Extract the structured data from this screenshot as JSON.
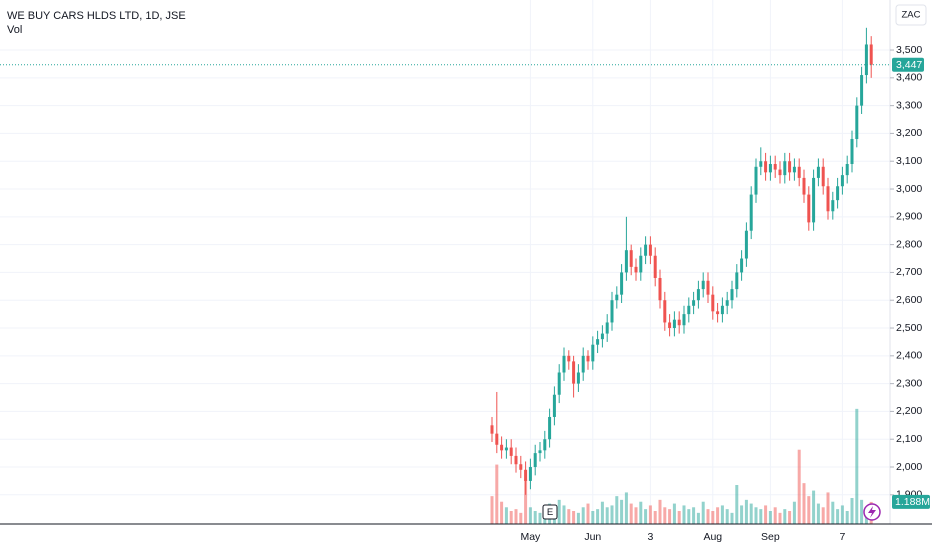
{
  "chart_data": {
    "type": "candlestick",
    "title": "WE BUY CARS HLDS LTD, 1D, JSE",
    "volume_title": "Vol",
    "currency": "ZAC",
    "earnings_marker": "E",
    "up_color": "#26a69a",
    "down_color": "#ef5350",
    "grid": true,
    "categories": [
      null,
      null,
      null,
      null,
      null,
      null,
      null,
      null,
      "May",
      null,
      null,
      null,
      null,
      null,
      null,
      null,
      null,
      null,
      null,
      null,
      null,
      "Jun",
      null,
      null,
      null,
      null,
      null,
      null,
      null,
      null,
      null,
      null,
      null,
      "3",
      null,
      null,
      null,
      null,
      null,
      null,
      null,
      null,
      null,
      null,
      null,
      null,
      "Aug",
      null,
      null,
      null,
      null,
      null,
      null,
      null,
      null,
      null,
      null,
      null,
      "Sep",
      null,
      null,
      null,
      null,
      null,
      null,
      null,
      null,
      null,
      null,
      null,
      null,
      null,
      null,
      "7",
      null,
      null,
      null,
      null,
      null,
      null
    ],
    "open": [
      2150,
      2120,
      2080,
      2060,
      2070,
      2040,
      2010,
      1990,
      1950,
      2000,
      2050,
      2060,
      2100,
      2180,
      2260,
      2340,
      2400,
      2380,
      2300,
      2340,
      2400,
      2380,
      2440,
      2460,
      2480,
      2520,
      2600,
      2620,
      2700,
      2780,
      2720,
      2700,
      2760,
      2800,
      2760,
      2680,
      2600,
      2520,
      2500,
      2530,
      2510,
      2550,
      2580,
      2600,
      2640,
      2670,
      2620,
      2560,
      2550,
      2580,
      2600,
      2640,
      2700,
      2750,
      2850,
      2980,
      3080,
      3100,
      3060,
      3090,
      3070,
      3050,
      3100,
      3060,
      3080,
      3040,
      2980,
      2880,
      3040,
      3080,
      3010,
      2920,
      2960,
      3010,
      3050,
      3090,
      3180,
      3300,
      3410,
      3520
    ],
    "high": [
      2180,
      2270,
      2110,
      2100,
      2100,
      2070,
      2040,
      2020,
      2030,
      2080,
      2090,
      2130,
      2210,
      2290,
      2370,
      2430,
      2420,
      2400,
      2370,
      2430,
      2420,
      2470,
      2490,
      2510,
      2550,
      2630,
      2650,
      2730,
      2900,
      2800,
      2750,
      2790,
      2830,
      2830,
      2790,
      2710,
      2630,
      2550,
      2560,
      2560,
      2580,
      2610,
      2630,
      2670,
      2700,
      2700,
      2650,
      2590,
      2610,
      2630,
      2670,
      2730,
      2780,
      2880,
      3010,
      3110,
      3150,
      3130,
      3120,
      3120,
      3100,
      3130,
      3130,
      3110,
      3110,
      3070,
      3010,
      3070,
      3110,
      3110,
      3040,
      2990,
      3040,
      3080,
      3120,
      3210,
      3330,
      3440,
      3580,
      3550
    ],
    "low": [
      2090,
      2050,
      2030,
      2030,
      2010,
      1980,
      1960,
      1900,
      1920,
      1970,
      2020,
      2030,
      2070,
      2150,
      2230,
      2310,
      2350,
      2250,
      2270,
      2310,
      2350,
      2350,
      2410,
      2430,
      2450,
      2490,
      2570,
      2590,
      2670,
      2690,
      2670,
      2670,
      2730,
      2730,
      2650,
      2570,
      2490,
      2470,
      2470,
      2480,
      2480,
      2520,
      2550,
      2570,
      2610,
      2590,
      2530,
      2520,
      2520,
      2550,
      2570,
      2610,
      2670,
      2720,
      2820,
      2950,
      3050,
      3030,
      3030,
      3040,
      3020,
      3020,
      3030,
      3030,
      3010,
      2950,
      2850,
      2850,
      3010,
      2980,
      2890,
      2890,
      2930,
      2980,
      3020,
      3060,
      3150,
      3270,
      3380,
      3400
    ],
    "close": [
      2120,
      2080,
      2060,
      2070,
      2040,
      2010,
      1990,
      1950,
      2000,
      2050,
      2060,
      2100,
      2180,
      2260,
      2340,
      2400,
      2380,
      2300,
      2340,
      2400,
      2380,
      2440,
      2460,
      2480,
      2520,
      2600,
      2620,
      2700,
      2780,
      2720,
      2700,
      2760,
      2800,
      2760,
      2680,
      2600,
      2520,
      2500,
      2530,
      2510,
      2550,
      2580,
      2600,
      2640,
      2670,
      2620,
      2560,
      2550,
      2580,
      2600,
      2640,
      2700,
      2750,
      2850,
      2980,
      3080,
      3100,
      3060,
      3090,
      3070,
      3050,
      3100,
      3060,
      3080,
      3040,
      2980,
      2880,
      3040,
      3080,
      3010,
      2920,
      2960,
      3010,
      3050,
      3090,
      3180,
      3300,
      3410,
      3520,
      3447
    ],
    "volume": [
      1500000,
      3200000,
      1200000,
      900000,
      700000,
      800000,
      600000,
      2400000,
      900000,
      700000,
      600000,
      800000,
      1100000,
      900000,
      1300000,
      1000000,
      800000,
      700000,
      600000,
      900000,
      1100000,
      700000,
      800000,
      1200000,
      900000,
      1000000,
      1500000,
      1300000,
      1700000,
      1100000,
      900000,
      1200000,
      800000,
      1000000,
      700000,
      1300000,
      900000,
      800000,
      1100000,
      700000,
      1000000,
      800000,
      900000,
      600000,
      1200000,
      800000,
      700000,
      900000,
      1000000,
      800000,
      600000,
      2100000,
      1000000,
      1300000,
      1100000,
      900000,
      800000,
      1000000,
      700000,
      900000,
      600000,
      800000,
      700000,
      1200000,
      4000000,
      2200000,
      1500000,
      1800000,
      1100000,
      900000,
      1700000,
      1200000,
      800000,
      1000000,
      700000,
      1400000,
      6200000,
      1300000,
      900000,
      1188000
    ],
    "last_price_label": {
      "value": 3447,
      "label": "3,447"
    },
    "last_volume_label": {
      "value": 1188000,
      "label": "1.188M"
    },
    "ylim": [
      1795,
      3680
    ],
    "yticks": [
      {
        "value": 1900,
        "label": "1,900"
      },
      {
        "value": 2000,
        "label": "2,000"
      },
      {
        "value": 2100,
        "label": "2,100"
      },
      {
        "value": 2200,
        "label": "2,200"
      },
      {
        "value": 2300,
        "label": "2,300"
      },
      {
        "value": 2400,
        "label": "2,400"
      },
      {
        "value": 2500,
        "label": "2,500"
      },
      {
        "value": 2600,
        "label": "2,600"
      },
      {
        "value": 2700,
        "label": "2,700"
      },
      {
        "value": 2800,
        "label": "2,800"
      },
      {
        "value": 2900,
        "label": "2,900"
      },
      {
        "value": 3000,
        "label": "3,000"
      },
      {
        "value": 3100,
        "label": "3,100"
      },
      {
        "value": 3200,
        "label": "3,200"
      },
      {
        "value": 3300,
        "label": "3,300"
      },
      {
        "value": 3400,
        "label": "3,400"
      },
      {
        "value": 3500,
        "label": "3,500"
      }
    ],
    "y2lim": [
      0,
      7000000
    ]
  }
}
